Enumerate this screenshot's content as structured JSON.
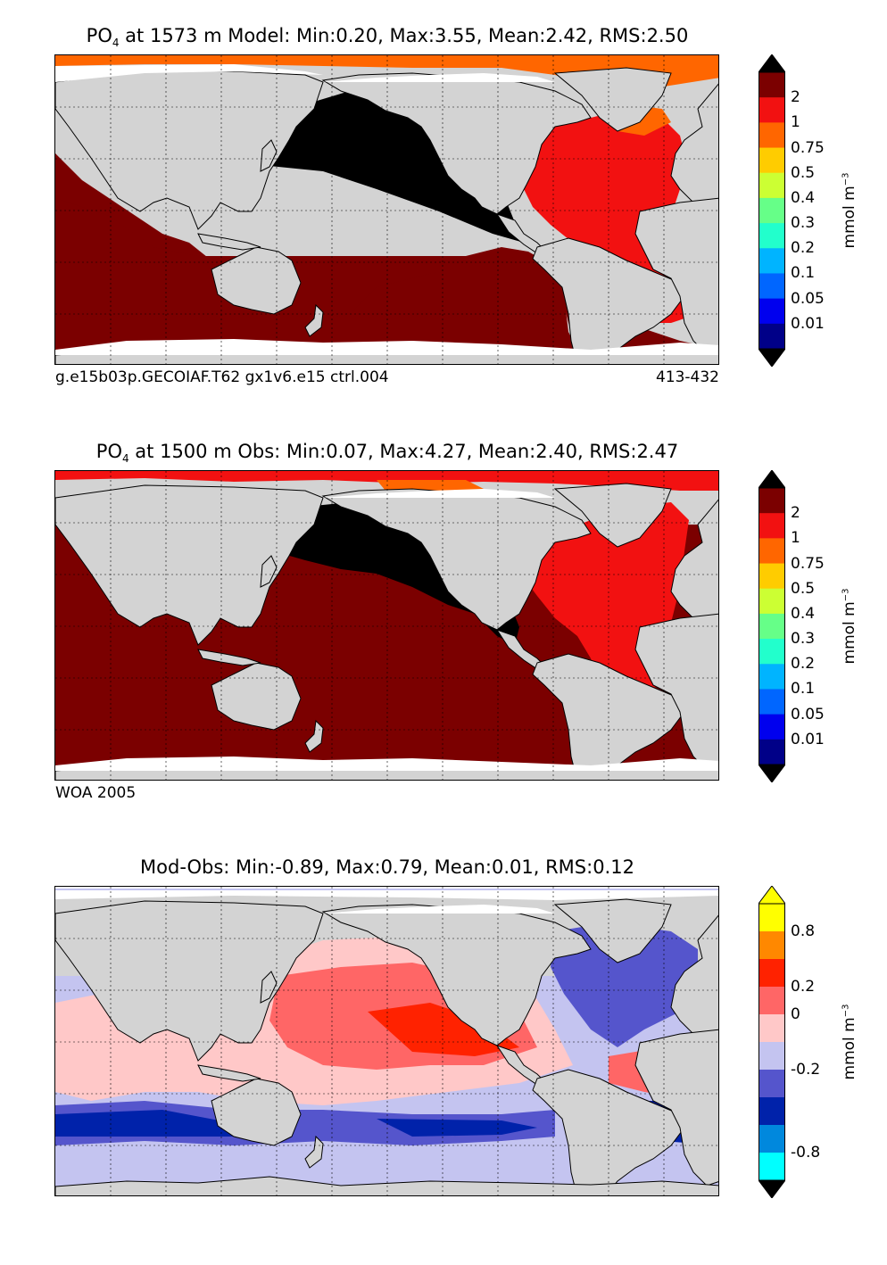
{
  "panels": [
    {
      "id": "model",
      "title_prefix": "PO",
      "title_sub": "4",
      "title_rest": " at 1573 m Model: Min:0.20, Max:3.55, Mean:2.42, RMS:2.50",
      "footer_left": "g.e15b03p.GECOIAF.T62 gx1v6.e15 ctrl.004",
      "footer_right": "413-432",
      "colorbar": {
        "ticks": [
          "2",
          "1",
          "0.75",
          "0.5",
          "0.4",
          "0.3",
          "0.2",
          "0.1",
          "0.05",
          "0.01"
        ],
        "colors": [
          "#7b0000",
          "#f21111",
          "#ff6600",
          "#ffcc00",
          "#ccff33",
          "#66ff88",
          "#22ffcc",
          "#00b4ff",
          "#0066ff",
          "#0000ee",
          "#000088"
        ],
        "unit": "mmol m",
        "unit_sup": "−3"
      }
    },
    {
      "id": "obs",
      "title_prefix": "PO",
      "title_sub": "4",
      "title_rest": " at 1500 m Obs: Min:0.07, Max:4.27, Mean:2.40, RMS:2.47",
      "footer_left": "WOA 2005",
      "footer_right": "",
      "colorbar": {
        "ticks": [
          "2",
          "1",
          "0.75",
          "0.5",
          "0.4",
          "0.3",
          "0.2",
          "0.1",
          "0.05",
          "0.01"
        ],
        "colors": [
          "#7b0000",
          "#f21111",
          "#ff6600",
          "#ffcc00",
          "#ccff33",
          "#66ff88",
          "#22ffcc",
          "#00b4ff",
          "#0066ff",
          "#0000ee",
          "#000088"
        ],
        "unit": "mmol m",
        "unit_sup": "−3"
      }
    },
    {
      "id": "diff",
      "title_prefix": "",
      "title_sub": "",
      "title_rest": "Mod-Obs: Min:-0.89, Max:0.79, Mean:0.01, RMS:0.12",
      "footer_left": "",
      "footer_right": "",
      "colorbar": {
        "ticks": [
          "0.8",
          "0.2",
          "0",
          "-0.2",
          "-0.8"
        ],
        "colors": [
          "#ffff00",
          "#ff8800",
          "#ff2200",
          "#ff6666",
          "#ffc8c8",
          "#c4c4f0",
          "#5555cc",
          "#0022aa",
          "#0088dd",
          "#00ffff"
        ],
        "unit": "mmol m",
        "unit_sup": "−3"
      }
    }
  ],
  "chart_data": [
    {
      "type": "heatmap",
      "title": "PO4 at 1573 m Model: Min:0.20, Max:3.55, Mean:2.42, RMS:2.50",
      "projection": "global lat-lon map",
      "levels": [
        0.01,
        0.05,
        0.1,
        0.2,
        0.3,
        0.4,
        0.5,
        0.75,
        1,
        2
      ],
      "stats": {
        "min": 0.2,
        "max": 3.55,
        "mean": 2.42,
        "rms": 2.5
      },
      "unit": "mmol m-3",
      "gridlines": true,
      "regions": {
        "North Pacific": "> 2 (black)",
        "Indian / South Pacific / Southern Ocean": "2 (dark red)",
        "Atlantic": "1-2 (red)",
        "Arctic / Nordic Seas": "0.75-1 (orange)"
      }
    },
    {
      "type": "heatmap",
      "title": "PO4 at 1500 m Obs: Min:0.07, Max:4.27, Mean:2.40, RMS:2.47",
      "projection": "global lat-lon map",
      "levels": [
        0.01,
        0.05,
        0.1,
        0.2,
        0.3,
        0.4,
        0.5,
        0.75,
        1,
        2
      ],
      "stats": {
        "min": 0.07,
        "max": 4.27,
        "mean": 2.4,
        "rms": 2.47
      },
      "unit": "mmol m-3",
      "gridlines": true,
      "regions": {
        "North Pacific": "> 2 (black)",
        "Indian / Pacific / Southern Ocean": "2 (dark red)",
        "Atlantic": "1-2 (red)",
        "Arctic": "1 / 0.75 (red-orange)"
      }
    },
    {
      "type": "heatmap",
      "title": "Mod-Obs: Min:-0.89, Max:0.79, Mean:0.01, RMS:0.12",
      "projection": "global lat-lon map",
      "levels": [
        -0.8,
        -0.2,
        0,
        0.2,
        0.8
      ],
      "stats": {
        "min": -0.89,
        "max": 0.79,
        "mean": 0.01,
        "rms": 0.12
      },
      "unit": "mmol m-3",
      "gridlines": true,
      "regions": {
        "Pacific / Indian": "0 to 0.2 (pink / red)",
        "Southern Ocean": "-0.2 to -0.8 (blue)",
        "North Atlantic": "-0.2 to 0 (blue / lavender)"
      }
    }
  ]
}
